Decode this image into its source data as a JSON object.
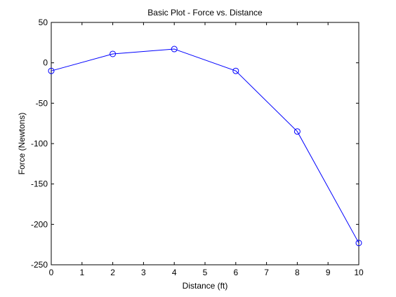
{
  "chart_data": {
    "type": "line",
    "title": "Basic Plot - Force vs. Distance",
    "xlabel": "Distance (ft)",
    "ylabel": "Force (Newtons)",
    "xlim": [
      0,
      10
    ],
    "ylim": [
      -250,
      50
    ],
    "xticks": [
      0,
      1,
      2,
      3,
      4,
      5,
      6,
      7,
      8,
      9,
      10
    ],
    "yticks": [
      50,
      0,
      -50,
      -100,
      -150,
      -200,
      -250
    ],
    "grid": false,
    "marker": "circle",
    "series": [
      {
        "x": [
          0,
          2,
          4,
          6,
          8,
          10
        ],
        "y": [
          -10,
          11,
          17,
          -10,
          -85,
          -223
        ],
        "color": "#0000ff"
      }
    ]
  }
}
